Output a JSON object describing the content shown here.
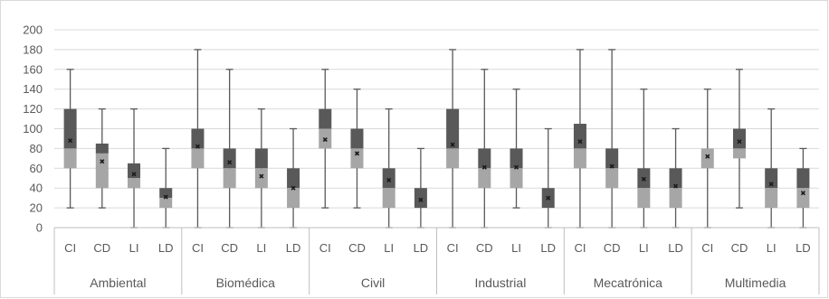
{
  "chart_data": {
    "type": "boxplot",
    "title": "",
    "xlabel": "",
    "ylabel": "",
    "ylim": [
      0,
      200
    ],
    "yticks": [
      0,
      20,
      40,
      60,
      80,
      100,
      120,
      140,
      160,
      180,
      200
    ],
    "grid": "horizontal",
    "legend": "none",
    "groups": [
      {
        "name": "Ambiental",
        "categories": [
          {
            "label": "CI",
            "min": 20,
            "q1": 60,
            "median": 80,
            "q3": 120,
            "max": 160,
            "mean": 88
          },
          {
            "label": "CD",
            "min": 20,
            "q1": 40,
            "median": 75,
            "q3": 85,
            "max": 120,
            "mean": 67
          },
          {
            "label": "LI",
            "min": 0,
            "q1": 40,
            "median": 50,
            "q3": 65,
            "max": 120,
            "mean": 54
          },
          {
            "label": "LD",
            "min": 0,
            "q1": 20,
            "median": 30,
            "q3": 40,
            "max": 80,
            "mean": 31
          }
        ]
      },
      {
        "name": "Biomédica",
        "categories": [
          {
            "label": "CI",
            "min": 0,
            "q1": 60,
            "median": 80,
            "q3": 100,
            "max": 180,
            "mean": 82
          },
          {
            "label": "CD",
            "min": 0,
            "q1": 40,
            "median": 60,
            "q3": 80,
            "max": 160,
            "mean": 66
          },
          {
            "label": "LI",
            "min": 0,
            "q1": 40,
            "median": 60,
            "q3": 80,
            "max": 120,
            "mean": 52
          },
          {
            "label": "LD",
            "min": 0,
            "q1": 20,
            "median": 40,
            "q3": 60,
            "max": 100,
            "mean": 40
          }
        ]
      },
      {
        "name": "Civil",
        "categories": [
          {
            "label": "CI",
            "min": 20,
            "q1": 80,
            "median": 100,
            "q3": 120,
            "max": 160,
            "mean": 89
          },
          {
            "label": "CD",
            "min": 20,
            "q1": 60,
            "median": 80,
            "q3": 100,
            "max": 140,
            "mean": 75
          },
          {
            "label": "LI",
            "min": 0,
            "q1": 20,
            "median": 40,
            "q3": 60,
            "max": 120,
            "mean": 48
          },
          {
            "label": "LD",
            "min": 0,
            "q1": 20,
            "median": 20,
            "q3": 40,
            "max": 80,
            "mean": 28
          }
        ]
      },
      {
        "name": "Industrial",
        "categories": [
          {
            "label": "CI",
            "min": 0,
            "q1": 60,
            "median": 80,
            "q3": 120,
            "max": 180,
            "mean": 84
          },
          {
            "label": "CD",
            "min": 0,
            "q1": 40,
            "median": 60,
            "q3": 80,
            "max": 160,
            "mean": 61
          },
          {
            "label": "LI",
            "min": 20,
            "q1": 40,
            "median": 60,
            "q3": 80,
            "max": 140,
            "mean": 61
          },
          {
            "label": "LD",
            "min": 0,
            "q1": 20,
            "median": 20,
            "q3": 40,
            "max": 100,
            "mean": 30
          }
        ]
      },
      {
        "name": "Mecatrónica",
        "categories": [
          {
            "label": "CI",
            "min": 0,
            "q1": 60,
            "median": 80,
            "q3": 105,
            "max": 180,
            "mean": 87
          },
          {
            "label": "CD",
            "min": 0,
            "q1": 40,
            "median": 60,
            "q3": 80,
            "max": 180,
            "mean": 62
          },
          {
            "label": "LI",
            "min": 0,
            "q1": 20,
            "median": 40,
            "q3": 60,
            "max": 140,
            "mean": 49
          },
          {
            "label": "LD",
            "min": 0,
            "q1": 20,
            "median": 40,
            "q3": 60,
            "max": 100,
            "mean": 42
          }
        ]
      },
      {
        "name": "Multimedia",
        "categories": [
          {
            "label": "CI",
            "min": 0,
            "q1": 60,
            "median": 80,
            "q3": 80,
            "max": 140,
            "mean": 72
          },
          {
            "label": "CD",
            "min": 20,
            "q1": 70,
            "median": 80,
            "q3": 100,
            "max": 160,
            "mean": 87
          },
          {
            "label": "LI",
            "min": 0,
            "q1": 20,
            "median": 40,
            "q3": 60,
            "max": 120,
            "mean": 44
          },
          {
            "label": "LD",
            "min": 0,
            "q1": 20,
            "median": 40,
            "q3": 60,
            "max": 80,
            "mean": 35
          }
        ]
      }
    ],
    "colors": {
      "upper_box": "#595959",
      "lower_box": "#a6a6a6",
      "whisker": "#595959",
      "gridline": "#d9d9d9",
      "axis": "#bfbfbf",
      "mean_marker": "#1a1a1a",
      "text": "#595959"
    }
  }
}
